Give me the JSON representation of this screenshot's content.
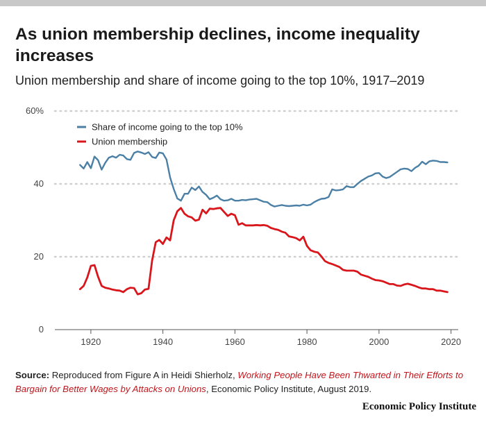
{
  "title": "As union membership declines, income inequality increases",
  "subtitle": "Union membership and share of income going to the top 10%, 1917–2019",
  "source": {
    "label": "Source:",
    "text_before": "Reproduced from Figure A in Heidi Shierholz,",
    "link_text": "Working People Have Been Thwarted in Their Efforts to Bargain for Better Wages by Attacks on Unions",
    "text_after": ", Economic Policy Institute, August 2019."
  },
  "branding": "Economic Policy Institute",
  "chart_data": {
    "type": "line",
    "xlim": [
      1910,
      2022
    ],
    "ylim": [
      0,
      60
    ],
    "x_ticks": [
      1920,
      1940,
      1960,
      1980,
      2000,
      2020
    ],
    "y_ticks": [
      0,
      20,
      40,
      60
    ],
    "y_tick_labels": [
      "0",
      "20",
      "40",
      "60%"
    ],
    "grid": true,
    "legend_position": "top-left",
    "series": [
      {
        "name": "Share of income going to the top 10%",
        "color": "#4a7fa6",
        "x": [
          1917,
          1918,
          1919,
          1920,
          1921,
          1922,
          1923,
          1924,
          1925,
          1926,
          1927,
          1928,
          1929,
          1930,
          1931,
          1932,
          1933,
          1934,
          1935,
          1936,
          1937,
          1938,
          1939,
          1940,
          1941,
          1942,
          1943,
          1944,
          1945,
          1946,
          1947,
          1948,
          1949,
          1950,
          1951,
          1952,
          1953,
          1954,
          1955,
          1956,
          1957,
          1958,
          1959,
          1960,
          1961,
          1962,
          1963,
          1964,
          1965,
          1966,
          1967,
          1968,
          1969,
          1970,
          1971,
          1972,
          1973,
          1974,
          1975,
          1976,
          1977,
          1978,
          1979,
          1980,
          1981,
          1982,
          1983,
          1984,
          1985,
          1986,
          1987,
          1988,
          1989,
          1990,
          1991,
          1992,
          1993,
          1994,
          1995,
          1996,
          1997,
          1998,
          1999,
          2000,
          2001,
          2002,
          2003,
          2004,
          2005,
          2006,
          2007,
          2008,
          2009,
          2010,
          2011,
          2012,
          2013,
          2014,
          2015,
          2016,
          2017,
          2018,
          2019
        ],
        "y": [
          45.2,
          44.2,
          46.0,
          44.3,
          47.5,
          46.5,
          43.9,
          45.8,
          47.2,
          47.6,
          47.2,
          48.0,
          47.8,
          46.8,
          46.6,
          48.5,
          48.9,
          48.6,
          48.2,
          48.7,
          47.4,
          47.1,
          48.6,
          48.4,
          46.7,
          41.8,
          38.6,
          36.0,
          35.4,
          37.3,
          37.3,
          39.0,
          38.3,
          39.3,
          37.8,
          37.0,
          35.8,
          36.2,
          36.8,
          35.8,
          35.4,
          35.5,
          35.9,
          35.4,
          35.4,
          35.6,
          35.5,
          35.7,
          35.8,
          35.9,
          35.5,
          35.1,
          35.0,
          34.2,
          33.8,
          34.0,
          34.2,
          34.0,
          33.9,
          34.0,
          34.1,
          34.0,
          34.3,
          34.1,
          34.3,
          35.0,
          35.5,
          35.9,
          36.0,
          36.4,
          38.5,
          38.2,
          38.3,
          38.5,
          39.4,
          39.1,
          39.1,
          40.0,
          40.8,
          41.4,
          42.0,
          42.3,
          42.9,
          43.0,
          42.0,
          41.6,
          41.9,
          42.6,
          43.3,
          44.0,
          44.2,
          44.1,
          43.5,
          44.4,
          45.0,
          46.1,
          45.4,
          46.2,
          46.4,
          46.3,
          46.0,
          46.0,
          45.9
        ]
      },
      {
        "name": "Union membership",
        "color": "#d8161b",
        "x": [
          1917,
          1918,
          1919,
          1920,
          1921,
          1922,
          1923,
          1924,
          1925,
          1926,
          1927,
          1928,
          1929,
          1930,
          1931,
          1932,
          1933,
          1934,
          1935,
          1936,
          1937,
          1938,
          1939,
          1940,
          1941,
          1942,
          1943,
          1944,
          1945,
          1946,
          1947,
          1948,
          1949,
          1950,
          1951,
          1952,
          1953,
          1954,
          1955,
          1956,
          1957,
          1958,
          1959,
          1960,
          1961,
          1962,
          1963,
          1964,
          1965,
          1966,
          1967,
          1968,
          1969,
          1970,
          1971,
          1972,
          1973,
          1974,
          1975,
          1976,
          1977,
          1978,
          1979,
          1980,
          1981,
          1982,
          1983,
          1984,
          1985,
          1986,
          1987,
          1988,
          1989,
          1990,
          1991,
          1992,
          1993,
          1994,
          1995,
          1996,
          1997,
          1998,
          1999,
          2000,
          2001,
          2002,
          2003,
          2004,
          2005,
          2006,
          2007,
          2008,
          2009,
          2010,
          2011,
          2012,
          2013,
          2014,
          2015,
          2016,
          2017,
          2018,
          2019
        ],
        "y": [
          11.1,
          12.0,
          14.3,
          17.5,
          17.7,
          14.5,
          12.0,
          11.5,
          11.3,
          11.0,
          10.8,
          10.7,
          10.3,
          11.1,
          11.5,
          11.4,
          9.7,
          10.0,
          11.0,
          11.2,
          19.0,
          24.0,
          24.6,
          23.5,
          25.3,
          24.5,
          30.0,
          32.5,
          33.4,
          31.8,
          31.1,
          30.8,
          29.9,
          30.2,
          32.9,
          31.9,
          33.2,
          33.1,
          33.3,
          33.4,
          32.3,
          31.2,
          31.8,
          31.4,
          28.8,
          29.2,
          28.6,
          28.6,
          28.6,
          28.7,
          28.6,
          28.7,
          28.5,
          27.9,
          27.6,
          27.4,
          26.9,
          26.6,
          25.6,
          25.4,
          25.1,
          24.5,
          25.5,
          23.0,
          21.8,
          21.4,
          21.2,
          20.1,
          18.8,
          18.3,
          18.0,
          17.6,
          17.2,
          16.4,
          16.2,
          16.2,
          16.2,
          15.9,
          15.1,
          14.8,
          14.5,
          14.0,
          13.6,
          13.5,
          13.3,
          12.9,
          12.5,
          12.5,
          12.1,
          12.0,
          12.4,
          12.6,
          12.3,
          12.0,
          11.6,
          11.3,
          11.3,
          11.1,
          11.1,
          10.7,
          10.7,
          10.5,
          10.3
        ]
      }
    ]
  }
}
